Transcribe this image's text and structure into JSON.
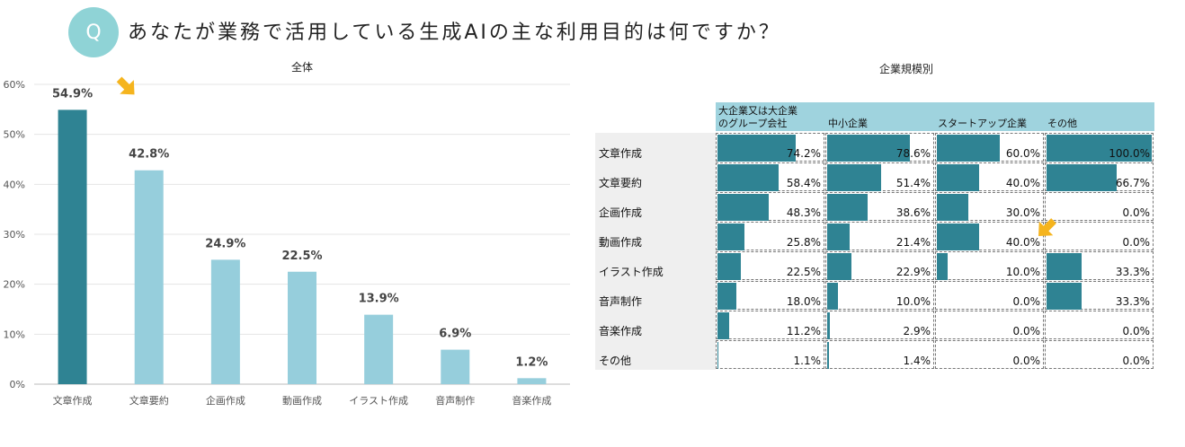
{
  "header": {
    "q_mark": "Q",
    "question": "あなたが業務で活用している生成AIの主な利用目的は何ですか？"
  },
  "chart_data": [
    {
      "type": "bar",
      "title": "全体",
      "categories": [
        "文章作成",
        "文章要約",
        "企画作成",
        "動画作成",
        "イラスト作成",
        "音声制作",
        "音楽作成"
      ],
      "values": [
        54.9,
        42.8,
        24.9,
        22.5,
        13.9,
        6.9,
        1.2
      ],
      "value_labels": [
        "54.9%",
        "42.8%",
        "24.9%",
        "22.5%",
        "13.9%",
        "6.9%",
        "1.2%"
      ],
      "ylim": [
        0,
        60
      ],
      "yticks": [
        "0%",
        "10%",
        "20%",
        "30%",
        "40%",
        "50%",
        "60%"
      ],
      "grid": true,
      "colors": {
        "highlight": "#2f8393",
        "normal": "#96cedc"
      }
    },
    {
      "type": "table",
      "title": "企業規模別",
      "columns": [
        "大企業又は大企業のグループ会社",
        "中小企業",
        "スタートアップ企業",
        "その他"
      ],
      "column_label_lines": [
        [
          "大企業又は大企業",
          "のグループ会社"
        ],
        [
          "中小企業"
        ],
        [
          "スタートアップ企業"
        ],
        [
          "その他"
        ]
      ],
      "rows": [
        {
          "label": "文章作成",
          "values": [
            74.2,
            78.6,
            60.0,
            100.0
          ],
          "labels": [
            "74.2%",
            "78.6%",
            "60.0%",
            "100.0%"
          ]
        },
        {
          "label": "文章要約",
          "values": [
            58.4,
            51.4,
            40.0,
            66.7
          ],
          "labels": [
            "58.4%",
            "51.4%",
            "40.0%",
            "66.7%"
          ]
        },
        {
          "label": "企画作成",
          "values": [
            48.3,
            38.6,
            30.0,
            0.0
          ],
          "labels": [
            "48.3%",
            "38.6%",
            "30.0%",
            "0.0%"
          ]
        },
        {
          "label": "動画作成",
          "values": [
            25.8,
            21.4,
            40.0,
            0.0
          ],
          "labels": [
            "25.8%",
            "21.4%",
            "40.0%",
            "0.0%"
          ]
        },
        {
          "label": "イラスト作成",
          "values": [
            22.5,
            22.9,
            10.0,
            33.3
          ],
          "labels": [
            "22.5%",
            "22.9%",
            "10.0%",
            "33.3%"
          ]
        },
        {
          "label": "音声制作",
          "values": [
            18.0,
            10.0,
            0.0,
            33.3
          ],
          "labels": [
            "18.0%",
            "10.0%",
            "0.0%",
            "33.3%"
          ]
        },
        {
          "label": "音楽作成",
          "values": [
            11.2,
            2.9,
            0.0,
            0.0
          ],
          "labels": [
            "11.2%",
            "2.9%",
            "0.0%",
            "0.0%"
          ]
        },
        {
          "label": "その他",
          "values": [
            1.1,
            1.4,
            0.0,
            0.0
          ],
          "labels": [
            "1.1%",
            "1.4%",
            "0.0%",
            "0.0%"
          ]
        }
      ],
      "bar_color": "#2f8393",
      "header_color": "#9fd3de"
    }
  ],
  "accent_arrow_color": "#f5b41e"
}
